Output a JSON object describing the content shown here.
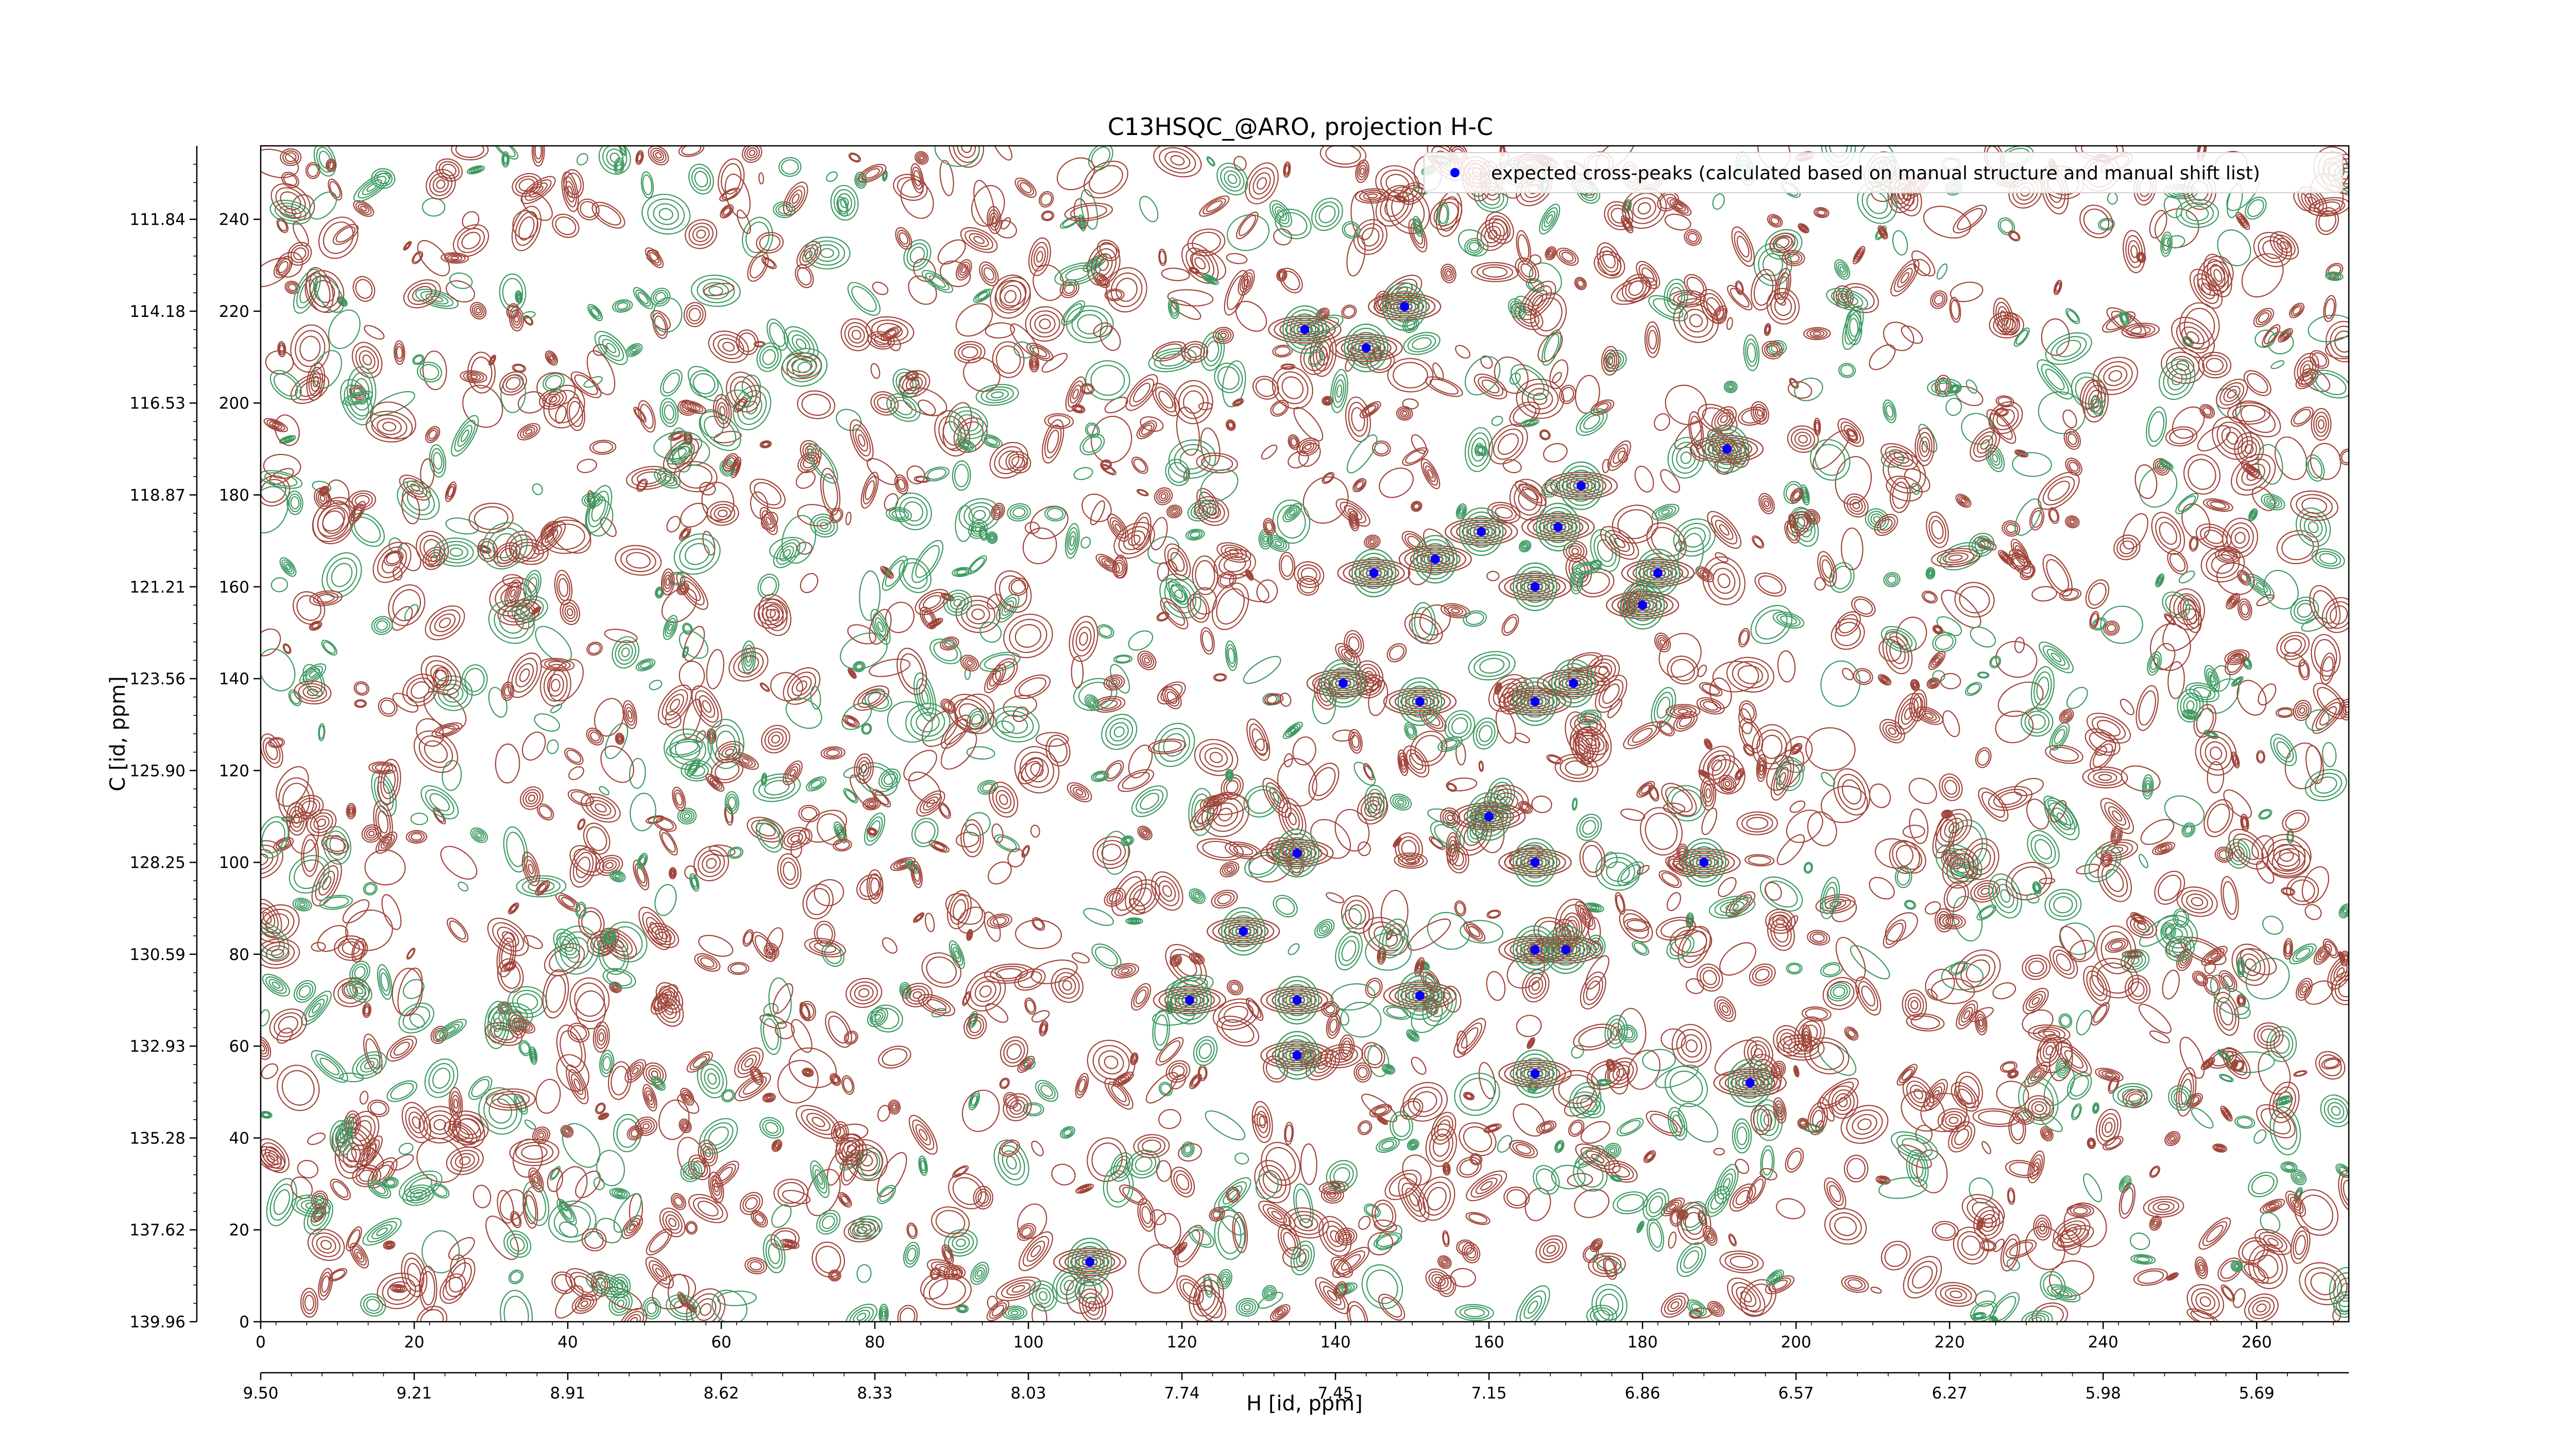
{
  "chart_data": {
    "type": "scatter",
    "title": "C13HSQC_@ARO, projection H-C",
    "xlabel": "H [id, ppm]",
    "ylabel": "C [id, ppm]",
    "xlim": [
      0,
      272
    ],
    "ylim": [
      0,
      256
    ],
    "x_ticks_points": [
      "0",
      "20",
      "40",
      "60",
      "80",
      "100",
      "120",
      "140",
      "160",
      "180",
      "200",
      "220",
      "240",
      "260"
    ],
    "x_ticks_ppm": [
      "9.50",
      "9.21",
      "8.91",
      "8.62",
      "8.33",
      "8.03",
      "7.74",
      "7.45",
      "7.15",
      "6.86",
      "6.57",
      "6.27",
      "5.98",
      "5.69"
    ],
    "y_ticks_points": [
      "0",
      "20",
      "40",
      "60",
      "80",
      "100",
      "120",
      "140",
      "160",
      "180",
      "200",
      "220",
      "240"
    ],
    "y_ticks_ppm": [
      "139.96",
      "137.62",
      "135.28",
      "132.93",
      "130.59",
      "128.25",
      "125.90",
      "123.56",
      "121.21",
      "118.87",
      "116.53",
      "114.18",
      "111.84"
    ],
    "grid": false,
    "legend_position": "top-right",
    "series": [
      {
        "name": "expected cross-peaks (calculated based on manual structure and manual shift list)",
        "color": "#0000ff",
        "marker": "circle",
        "points": [
          {
            "x": 136,
            "y": 216
          },
          {
            "x": 149,
            "y": 221
          },
          {
            "x": 144,
            "y": 212
          },
          {
            "x": 191,
            "y": 190
          },
          {
            "x": 172,
            "y": 182
          },
          {
            "x": 169,
            "y": 173
          },
          {
            "x": 159,
            "y": 172
          },
          {
            "x": 153,
            "y": 166
          },
          {
            "x": 145,
            "y": 163
          },
          {
            "x": 166,
            "y": 160
          },
          {
            "x": 182,
            "y": 163
          },
          {
            "x": 180,
            "y": 156
          },
          {
            "x": 141,
            "y": 139
          },
          {
            "x": 151,
            "y": 135
          },
          {
            "x": 166,
            "y": 135
          },
          {
            "x": 171,
            "y": 139
          },
          {
            "x": 160,
            "y": 110
          },
          {
            "x": 135,
            "y": 102
          },
          {
            "x": 166,
            "y": 100
          },
          {
            "x": 188,
            "y": 100
          },
          {
            "x": 128,
            "y": 85
          },
          {
            "x": 166,
            "y": 81
          },
          {
            "x": 170,
            "y": 81
          },
          {
            "x": 121,
            "y": 70
          },
          {
            "x": 151,
            "y": 71
          },
          {
            "x": 135,
            "y": 70
          },
          {
            "x": 135,
            "y": 58
          },
          {
            "x": 166,
            "y": 54
          },
          {
            "x": 194,
            "y": 52
          },
          {
            "x": 108,
            "y": 13
          }
        ]
      }
    ],
    "contours": {
      "positive_color": "#a0453a",
      "negative_color": "#3f9a63",
      "peak_positive_level_count": 6,
      "peak_negative_level_count": 5
    }
  }
}
